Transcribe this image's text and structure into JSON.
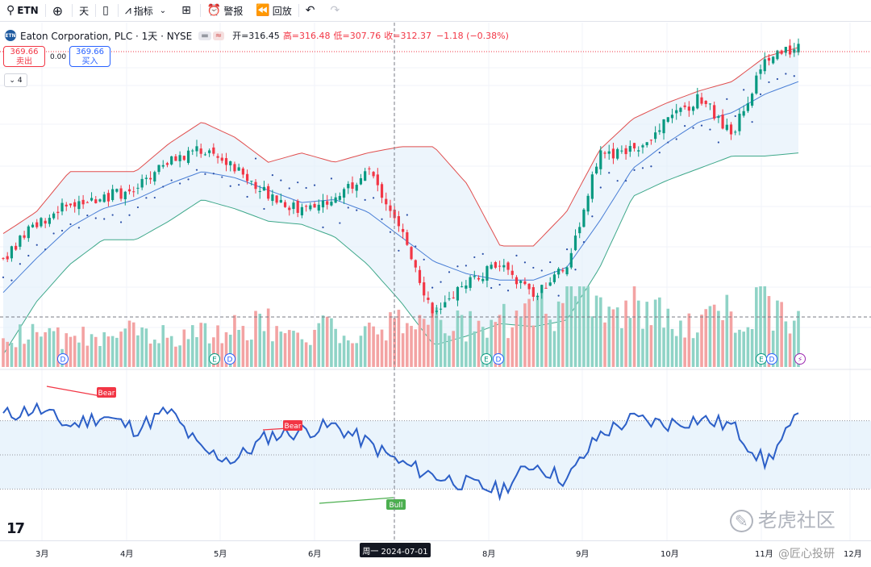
{
  "toolbar": {
    "symbol": "ETN",
    "interval": "天",
    "indicators": "指标",
    "alert": "警报",
    "replay": "回放"
  },
  "legend": {
    "logo_text": "ETN",
    "title": "Eaton Corporation, PLC · 1天 · NYSE",
    "open": "开=316.45",
    "high": "高=316.48",
    "low": "低=307.76",
    "close": "收=312.37",
    "change": "−1.18 (−0.38%)",
    "pill": "≈"
  },
  "trade": {
    "sell_price": "369.66",
    "sell_label": "卖出",
    "spread": "0.00",
    "buy_price": "369.66",
    "buy_label": "买入"
  },
  "collapse_label": "4",
  "crosshair_date": "周一 2024-07-01",
  "x_axis": {
    "labels": [
      "3月",
      "4月",
      "5月",
      "6月",
      "7月",
      "8月",
      "9月",
      "10月",
      "11月",
      "12月"
    ]
  },
  "watermark": {
    "brand": "老虎社区",
    "author": "@匠心投研"
  },
  "chart_data": [
    {
      "type": "candlestick",
      "title": "Eaton Corporation, PLC · 1天 · NYSE",
      "overlays": [
        "Bollinger Bands (basis, upper, lower)",
        "Parabolic SAR"
      ],
      "x": [
        "2024-02-26",
        "2024-03-15",
        "2024-04-01",
        "2024-04-15",
        "2024-05-01",
        "2024-05-15",
        "2024-05-28",
        "2024-06-05",
        "2024-06-14",
        "2024-07-01",
        "2024-07-10",
        "2024-07-23",
        "2024-07-31",
        "2024-08-05",
        "2024-08-14",
        "2024-08-23",
        "2024-09-03",
        "2024-09-11",
        "2024-09-20",
        "2024-10-01",
        "2024-10-14",
        "2024-10-25",
        "2024-11-01",
        "2024-11-06",
        "2024-11-12"
      ],
      "close": [
        303,
        314,
        321,
        323,
        325,
        334,
        338,
        332,
        324,
        318,
        322,
        332,
        313,
        284,
        296,
        301,
        291,
        301,
        336,
        338,
        347,
        355,
        343,
        367,
        371
      ],
      "bb_basis": [
        292,
        303,
        313,
        319,
        322,
        327,
        331,
        329,
        325,
        321,
        322,
        318,
        310,
        302,
        298,
        296,
        296,
        300,
        315,
        332,
        340,
        347,
        350,
        356,
        360
      ],
      "bb_upper": [
        311,
        318,
        331,
        331,
        331,
        340,
        347,
        342,
        334,
        337,
        334,
        337,
        339,
        339,
        327,
        307,
        307,
        318,
        338,
        348,
        353,
        357,
        360,
        368,
        371
      ],
      "bb_lower": [
        272,
        289,
        301,
        309,
        309,
        315,
        322,
        319,
        315,
        314,
        310,
        301,
        289,
        275,
        278,
        282,
        281,
        283,
        300,
        323,
        328,
        332,
        336,
        336,
        337
      ],
      "last_price": 369.66
    },
    {
      "type": "bar",
      "title": "Volume",
      "note": "bar colors follow candle direction; relative heights only",
      "values": [
        28,
        30,
        26,
        33,
        31,
        29,
        30,
        35,
        40,
        33,
        37,
        36,
        45,
        50,
        39,
        42,
        48,
        55,
        60,
        58,
        45,
        38,
        52,
        56,
        42
      ],
      "events": [
        "D",
        "E",
        "D",
        "E",
        "E",
        "E",
        "lightning"
      ]
    },
    {
      "type": "line",
      "title": "RSI",
      "ylim": [
        0,
        100
      ],
      "bands": [
        30,
        50,
        70
      ],
      "values": [
        73,
        77,
        67,
        73,
        65,
        76,
        52,
        47,
        61,
        64,
        67,
        57,
        45,
        38,
        33,
        29,
        45,
        35,
        62,
        71,
        68,
        71,
        67,
        45,
        72
      ],
      "divergences": [
        {
          "label": "Bear",
          "from": "2024-02-28",
          "to": "2024-03-21"
        },
        {
          "label": "Bear",
          "from": "2024-05-13",
          "to": "2024-05-24"
        },
        {
          "label": "Bull",
          "from": "2024-06-03",
          "to": "2024-06-28"
        }
      ]
    }
  ]
}
